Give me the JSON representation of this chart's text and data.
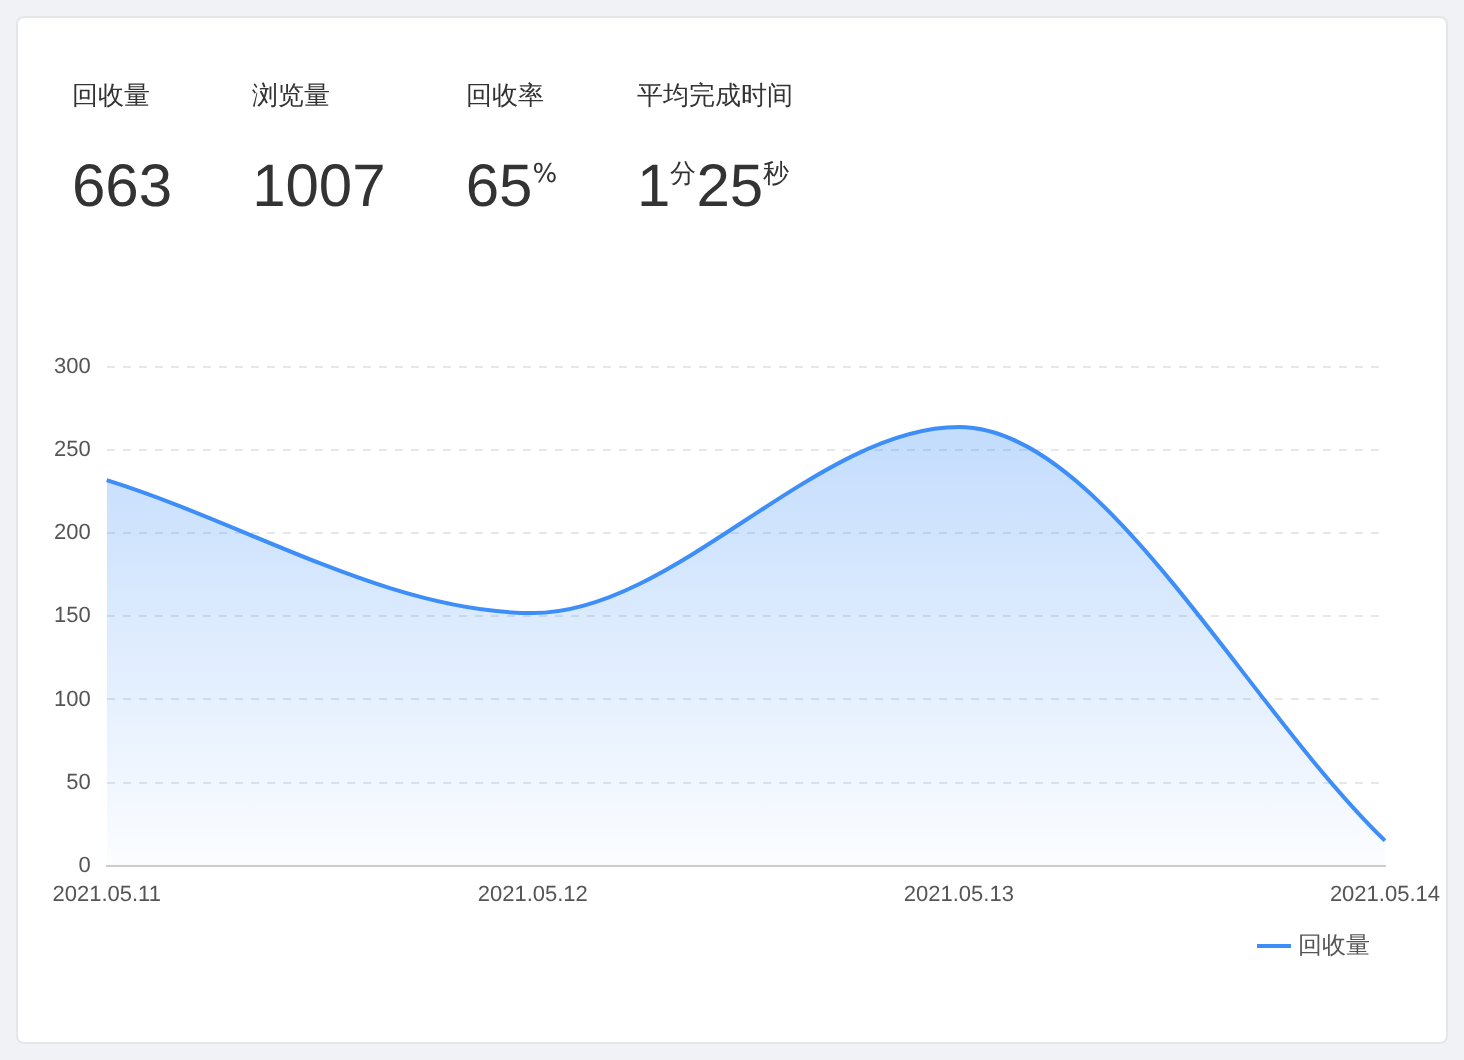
{
  "chart_data": [
    {
      "type": "other",
      "annotations": [
        "回收量",
        "663",
        "浏览量",
        "1007",
        "回收率",
        "65$^{%}$",
        "平均完成时间",
        "1$^{分}$25$^{秒}$"
      ]
    },
    {
      "type": "area",
      "categories": [
        "2021.05.11",
        "2021.05.12",
        "2021.05.13",
        "2021.05.14"
      ],
      "series": [
        {
          "name": "回收量",
          "color": "#3d8ef8",
          "values": [
            232,
            152,
            264,
            15
          ]
        }
      ],
      "ylim": [
        0,
        300
      ],
      "yticks": [
        0,
        50,
        100,
        150,
        200,
        250,
        300
      ],
      "grid": "y",
      "legend": "bottom right",
      "marker": "none"
    }
  ]
}
